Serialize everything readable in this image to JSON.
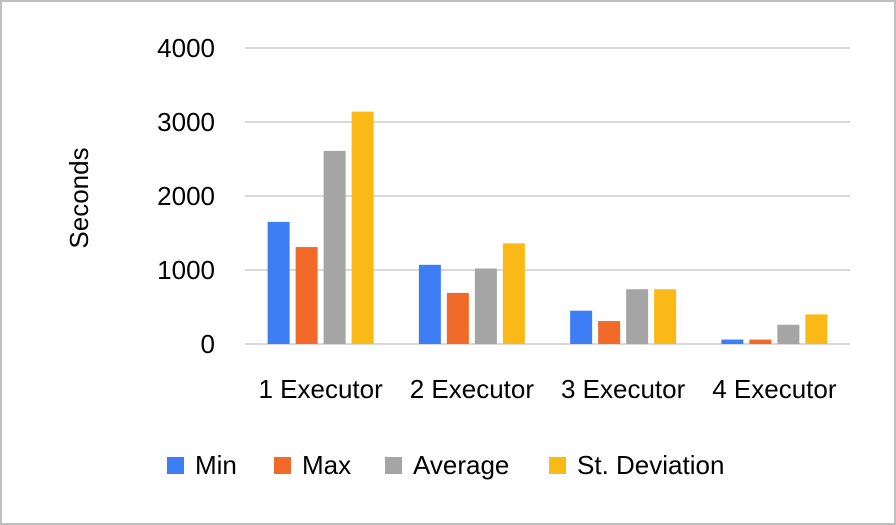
{
  "chart_data": {
    "type": "bar",
    "title": "",
    "xlabel": "",
    "ylabel": "Seconds",
    "ylim": [
      0,
      4000
    ],
    "yticks": [
      0,
      1000,
      2000,
      3000,
      4000
    ],
    "grid": true,
    "legend_position": "bottom",
    "categories": [
      "1 Executor",
      "2 Executor",
      "3 Executor",
      "4 Executor"
    ],
    "series": [
      {
        "name": "Min",
        "color": "#3d7ef5",
        "values": [
          1650,
          1070,
          450,
          60
        ]
      },
      {
        "name": "Max",
        "color": "#f26a2a",
        "values": [
          1310,
          690,
          310,
          60
        ]
      },
      {
        "name": "Average",
        "color": "#a5a5a5",
        "values": [
          2610,
          1020,
          740,
          260
        ]
      },
      {
        "name": "St. Deviation",
        "color": "#fbb917",
        "values": [
          3140,
          1360,
          740,
          400
        ]
      }
    ]
  }
}
